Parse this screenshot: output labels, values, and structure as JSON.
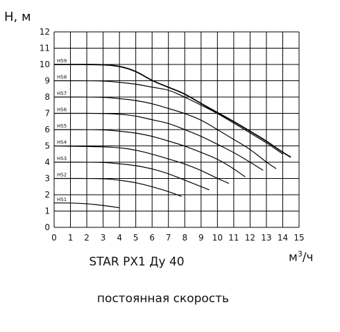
{
  "chart_data": {
    "type": "line",
    "ylabel": "H, м",
    "xlabel_base": "м",
    "xlabel_sup": "3",
    "xlabel_tail": "/ч",
    "title": "STAR PX1 Ду 40",
    "subtitle": "постоянная скорость",
    "xlim": [
      0,
      15
    ],
    "ylim": [
      0,
      12
    ],
    "x_ticks": [
      "0",
      "1",
      "2",
      "3",
      "4",
      "5",
      "6",
      "7",
      "8",
      "9",
      "10",
      "11",
      "12",
      "13",
      "14",
      "15"
    ],
    "y_ticks": [
      "0",
      "1",
      "2",
      "3",
      "4",
      "5",
      "6",
      "7",
      "8",
      "9",
      "10",
      "11",
      "12"
    ],
    "grid": true,
    "series": [
      {
        "name": "HS9",
        "points": [
          [
            0,
            10
          ],
          [
            3,
            10
          ],
          [
            4,
            9.9
          ],
          [
            5,
            9.6
          ],
          [
            6,
            9.0
          ],
          [
            7,
            8.6
          ],
          [
            8,
            8.2
          ],
          [
            9,
            7.6
          ],
          [
            10,
            7.05
          ],
          [
            11,
            6.5
          ],
          [
            12,
            5.9
          ],
          [
            13,
            5.3
          ],
          [
            14,
            4.6
          ],
          [
            14.5,
            4.3
          ]
        ]
      },
      {
        "name": "HS8",
        "points": [
          [
            0,
            9
          ],
          [
            3,
            9
          ],
          [
            4,
            8.9
          ],
          [
            5,
            8.8
          ],
          [
            6,
            8.6
          ],
          [
            7,
            8.45
          ],
          [
            8,
            8.0
          ],
          [
            9,
            7.5
          ],
          [
            10,
            7.0
          ],
          [
            11,
            6.4
          ],
          [
            12,
            5.8
          ],
          [
            13,
            5.2
          ],
          [
            14,
            4.5
          ]
        ]
      },
      {
        "name": "HS7",
        "points": [
          [
            0,
            8
          ],
          [
            3,
            8
          ],
          [
            4,
            7.9
          ],
          [
            5,
            7.8
          ],
          [
            6,
            7.6
          ],
          [
            7,
            7.3
          ],
          [
            8,
            7.0
          ],
          [
            9,
            6.6
          ],
          [
            10,
            6.0
          ],
          [
            11,
            5.4
          ],
          [
            12,
            4.8
          ],
          [
            13,
            4.0
          ],
          [
            13.6,
            3.6
          ]
        ]
      },
      {
        "name": "HS6",
        "points": [
          [
            0,
            7
          ],
          [
            3,
            7
          ],
          [
            4,
            6.95
          ],
          [
            5,
            6.85
          ],
          [
            6,
            6.6
          ],
          [
            7,
            6.4
          ],
          [
            8,
            6.0
          ],
          [
            9,
            5.6
          ],
          [
            10,
            5.1
          ],
          [
            11,
            4.6
          ],
          [
            12,
            4.0
          ],
          [
            12.8,
            3.5
          ]
        ]
      },
      {
        "name": "HS5",
        "points": [
          [
            0,
            6
          ],
          [
            3,
            6
          ],
          [
            4,
            5.9
          ],
          [
            5,
            5.8
          ],
          [
            6,
            5.6
          ],
          [
            7,
            5.3
          ],
          [
            8,
            5.0
          ],
          [
            9,
            4.6
          ],
          [
            10,
            4.2
          ],
          [
            11,
            3.6
          ],
          [
            11.7,
            3.1
          ]
        ]
      },
      {
        "name": "HS4",
        "points": [
          [
            0,
            5
          ],
          [
            3,
            4.95
          ],
          [
            4,
            4.9
          ],
          [
            5,
            4.75
          ],
          [
            6,
            4.5
          ],
          [
            7,
            4.2
          ],
          [
            8,
            3.9
          ],
          [
            9,
            3.5
          ],
          [
            10,
            3.0
          ],
          [
            10.7,
            2.7
          ]
        ]
      },
      {
        "name": "HS3",
        "points": [
          [
            0,
            4
          ],
          [
            3,
            4
          ],
          [
            4,
            3.9
          ],
          [
            5,
            3.8
          ],
          [
            6,
            3.6
          ],
          [
            7,
            3.3
          ],
          [
            8,
            2.9
          ],
          [
            9,
            2.5
          ],
          [
            9.5,
            2.3
          ]
        ]
      },
      {
        "name": "HS2",
        "points": [
          [
            0,
            3
          ],
          [
            3,
            3
          ],
          [
            4,
            2.9
          ],
          [
            5,
            2.75
          ],
          [
            6,
            2.5
          ],
          [
            7,
            2.2
          ],
          [
            7.8,
            1.9
          ]
        ]
      },
      {
        "name": "HS1",
        "points": [
          [
            0,
            1.5
          ],
          [
            1,
            1.5
          ],
          [
            2,
            1.45
          ],
          [
            3,
            1.35
          ],
          [
            4,
            1.2
          ]
        ]
      }
    ]
  }
}
